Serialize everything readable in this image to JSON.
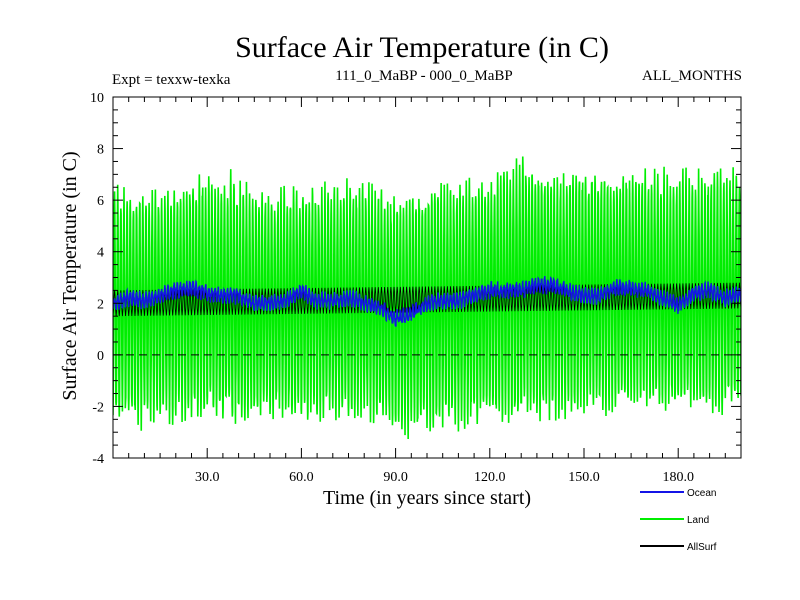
{
  "colors": {
    "ocean": "#1414e6",
    "land": "#00ee00",
    "allsurf": "#000000",
    "zero_line": "#000000",
    "background": "#ffffff"
  },
  "chart_data": {
    "type": "line",
    "title": "Surface Air Temperature (in C)",
    "subtitle_left": "Expt = texxw-texka",
    "subtitle_center": "111_0_MaBP - 000_0_MaBP",
    "subtitle_right": "ALL_MONTHS",
    "xlabel": "Time (in years since start)",
    "ylabel": "Surface Air Temperature (in C)",
    "xlim": [
      0,
      200
    ],
    "ylim": [
      -4,
      10
    ],
    "x_ticks": [
      30,
      60,
      90,
      120,
      150,
      180
    ],
    "x_tick_labels": [
      "30.0",
      "60.0",
      "90.0",
      "120.0",
      "150.0",
      "180.0"
    ],
    "y_ticks": [
      -4,
      -2,
      0,
      2,
      4,
      6,
      8,
      10
    ],
    "y_tick_labels": [
      "-4",
      "-2",
      "0",
      "2",
      "4",
      "6",
      "8",
      "10"
    ],
    "zero_line": 0,
    "legend": [
      {
        "name": "Ocean",
        "color": "#1414e6"
      },
      {
        "name": "Land",
        "color": "#00ee00"
      },
      {
        "name": "AllSurf",
        "color": "#000000"
      }
    ],
    "series": [
      {
        "name": "Land",
        "representation": "monthly values oscillating seasonally about the yearly mean",
        "x": [
          0,
          10,
          20,
          30,
          40,
          50,
          60,
          70,
          80,
          90,
          100,
          110,
          120,
          130,
          140,
          150,
          160,
          170,
          180,
          190,
          200
        ],
        "mean": [
          1.9,
          1.8,
          2.2,
          2.1,
          1.8,
          1.9,
          2.2,
          1.9,
          2.0,
          1.6,
          1.8,
          2.0,
          2.3,
          2.6,
          2.5,
          2.3,
          2.5,
          2.3,
          1.9,
          2.2,
          2.4
        ],
        "max_envelope": [
          6.7,
          6.3,
          6.5,
          7.2,
          7.0,
          6.4,
          6.6,
          6.7,
          6.8,
          6.3,
          6.6,
          6.7,
          6.8,
          8.1,
          7.1,
          7.3,
          7.4,
          7.3,
          7.3,
          7.2,
          7.4
        ],
        "min_envelope": [
          -2.6,
          -2.8,
          -2.7,
          -2.5,
          -2.8,
          -2.5,
          -2.7,
          -2.6,
          -2.7,
          -3.2,
          -3.0,
          -2.9,
          -2.9,
          -2.8,
          -2.7,
          -2.3,
          -2.4,
          -2.0,
          -2.2,
          -2.3,
          -2.3
        ]
      },
      {
        "name": "Ocean",
        "representation": "monthly values",
        "x": [
          0,
          5,
          10,
          15,
          20,
          25,
          30,
          35,
          40,
          45,
          50,
          55,
          60,
          65,
          70,
          75,
          80,
          85,
          90,
          95,
          100,
          105,
          110,
          115,
          120,
          125,
          130,
          135,
          140,
          145,
          150,
          155,
          160,
          165,
          170,
          175,
          180,
          185,
          190,
          195,
          200
        ],
        "y": [
          2.0,
          2.2,
          2.1,
          2.3,
          2.5,
          2.6,
          2.4,
          2.3,
          2.3,
          2.0,
          2.0,
          2.1,
          2.5,
          2.1,
          2.1,
          2.2,
          2.0,
          1.8,
          1.4,
          1.6,
          2.0,
          2.1,
          2.1,
          2.3,
          2.5,
          2.5,
          2.5,
          2.7,
          2.7,
          2.5,
          2.3,
          2.3,
          2.6,
          2.6,
          2.5,
          2.2,
          1.9,
          2.4,
          2.5,
          2.2,
          2.4
        ]
      },
      {
        "name": "AllSurf",
        "representation": "monthly values (hidden beneath the Land and Ocean traces)",
        "x": [
          0,
          200
        ],
        "y": [
          2.0,
          2.3
        ]
      }
    ]
  }
}
